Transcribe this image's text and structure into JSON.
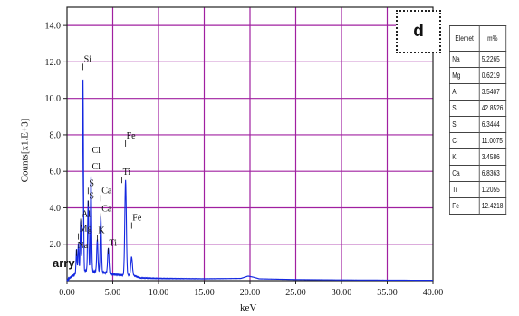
{
  "panel_label": "d",
  "caption_fragment": "arry",
  "table": {
    "headers": [
      "Elemet",
      "m%"
    ],
    "rows": [
      [
        "Na",
        "5.2265"
      ],
      [
        "Mg",
        "0.6219"
      ],
      [
        "Al",
        "3.5407"
      ],
      [
        "Si",
        "42.8526"
      ],
      [
        "S",
        "6.3444"
      ],
      [
        "Cl",
        "11.0075"
      ],
      [
        "K",
        "3.4586"
      ],
      [
        "Ca",
        "6.8363"
      ],
      [
        "Ti",
        "1.2055"
      ],
      [
        "Fe",
        "12.4218"
      ]
    ]
  },
  "colors": {
    "grid": "#a020a0",
    "spectrum": "#1428e0",
    "axes": "#222222"
  },
  "chart_data": {
    "type": "line",
    "xlabel": "keV",
    "ylabel": "Counts[x1.E+3]",
    "xlim": [
      0,
      40
    ],
    "ylim": [
      0,
      15
    ],
    "xticks": [
      "0.00",
      "5.00",
      "10.00",
      "15.00",
      "20.00",
      "25.00",
      "30.00",
      "35.00",
      "40.00"
    ],
    "yticks": [
      "2.0",
      "4.0",
      "6.0",
      "8.0",
      "10.0",
      "12.0",
      "14.0"
    ],
    "grid": true,
    "background": [
      [
        0,
        0
      ],
      [
        0.3,
        0.15
      ],
      [
        0.7,
        0.3
      ],
      [
        1.0,
        0.4
      ],
      [
        1.4,
        0.5
      ],
      [
        2.2,
        0.55
      ],
      [
        3.0,
        0.5
      ],
      [
        4.0,
        0.45
      ],
      [
        5.0,
        0.35
      ],
      [
        6.0,
        0.3
      ],
      [
        7.2,
        0.3
      ],
      [
        8.0,
        0.15
      ],
      [
        10.0,
        0.12
      ],
      [
        15.0,
        0.1
      ],
      [
        19.0,
        0.12
      ],
      [
        19.8,
        0.25
      ],
      [
        20.3,
        0.2
      ],
      [
        21.0,
        0.1
      ],
      [
        25.0,
        0.06
      ],
      [
        30.0,
        0.04
      ],
      [
        35.0,
        0.03
      ],
      [
        40.0,
        0.02
      ]
    ],
    "peaks": [
      {
        "label": "Na",
        "x": 1.04,
        "y": 1.3
      },
      {
        "label": "Mg",
        "x": 1.25,
        "y": 1.6
      },
      {
        "label": "Al",
        "x": 1.49,
        "y": 2.8
      },
      {
        "label": "Si",
        "x": 1.74,
        "y": 10.7
      },
      {
        "label": "S",
        "x": 2.31,
        "y": 3.9
      },
      {
        "label": "Cl",
        "x": 2.62,
        "y": 5.2
      },
      {
        "label": "K",
        "x": 3.31,
        "y": 1.8
      },
      {
        "label": "Ca",
        "x": 3.69,
        "y": 3.1
      },
      {
        "label": "Ti",
        "x": 4.51,
        "y": 1.4
      },
      {
        "label": "Fe",
        "x": 6.4,
        "y": 5.2
      },
      {
        "label": "Fe",
        "x": 7.06,
        "y": 1.0
      }
    ],
    "peak_labels": [
      {
        "text": "Si",
        "x": 1.74,
        "y": 12.0
      },
      {
        "text": "Cl",
        "x": 2.62,
        "y": 7.0
      },
      {
        "text": "Cl",
        "x": 2.62,
        "y": 6.1
      },
      {
        "text": "S",
        "x": 2.31,
        "y": 5.2
      },
      {
        "text": "S",
        "x": 2.31,
        "y": 4.5
      },
      {
        "text": "Ca",
        "x": 3.69,
        "y": 4.8
      },
      {
        "text": "Ca",
        "x": 3.69,
        "y": 3.8
      },
      {
        "text": "Al",
        "x": 1.49,
        "y": 3.5
      },
      {
        "text": "Mg",
        "x": 1.25,
        "y": 2.7
      },
      {
        "text": "K",
        "x": 3.31,
        "y": 2.6
      },
      {
        "text": "Na",
        "x": 1.04,
        "y": 1.8
      },
      {
        "text": "Ti",
        "x": 4.51,
        "y": 1.9
      },
      {
        "text": "Ti",
        "x": 6.0,
        "y": 5.8
      },
      {
        "text": "Fe",
        "x": 6.4,
        "y": 7.8
      },
      {
        "text": "Fe",
        "x": 7.06,
        "y": 3.3
      }
    ]
  }
}
